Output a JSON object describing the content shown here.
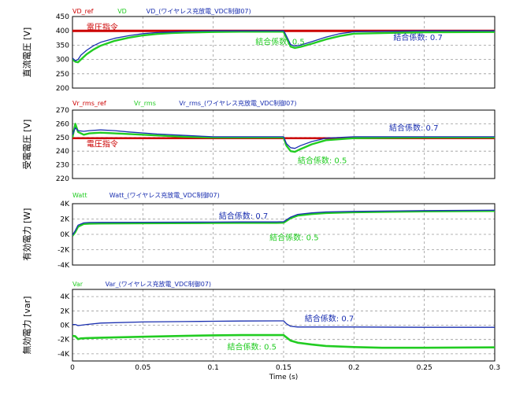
{
  "chart_data": [
    {
      "type": "line",
      "ylabel": "直流電圧 [V]",
      "ylim": [
        200,
        450
      ],
      "yticks": [
        "200",
        "250",
        "300",
        "350",
        "400",
        "450"
      ],
      "grid": true,
      "legend": [
        {
          "label": "VD_ref",
          "color": "#cc0000"
        },
        {
          "label": "VD",
          "color": "#22cc22"
        },
        {
          "label": "VD_(ワイヤレス充放電_VDC制御07)",
          "color": "#1a2fb0"
        }
      ],
      "series": [
        {
          "name": "VD_ref",
          "color": "#cc0000",
          "width": 3,
          "x": [
            0,
            0.3
          ],
          "y": [
            400,
            400
          ]
        },
        {
          "name": "VD",
          "color": "#22cc22",
          "width": 2.4,
          "x": [
            0,
            0.002,
            0.004,
            0.006,
            0.01,
            0.015,
            0.02,
            0.03,
            0.04,
            0.05,
            0.06,
            0.07,
            0.08,
            0.1,
            0.12,
            0.145,
            0.15,
            0.151,
            0.153,
            0.155,
            0.158,
            0.162,
            0.17,
            0.18,
            0.19,
            0.2,
            0.25,
            0.3
          ],
          "y": [
            300,
            292,
            290,
            300,
            318,
            335,
            348,
            365,
            376,
            384,
            389,
            392,
            394,
            396,
            397,
            397,
            397,
            385,
            365,
            345,
            340,
            344,
            355,
            370,
            382,
            390,
            395,
            396
          ]
        },
        {
          "name": "VD_(ワイヤレス充放電_VDC制御07)",
          "color": "#1a2fb0",
          "width": 1.3,
          "x": [
            0,
            0.002,
            0.004,
            0.006,
            0.01,
            0.015,
            0.02,
            0.03,
            0.04,
            0.05,
            0.06,
            0.07,
            0.08,
            0.1,
            0.12,
            0.145,
            0.15,
            0.151,
            0.153,
            0.155,
            0.158,
            0.162,
            0.17,
            0.18,
            0.19,
            0.2,
            0.25,
            0.3
          ],
          "y": [
            305,
            296,
            300,
            315,
            332,
            348,
            360,
            374,
            383,
            390,
            394,
            396,
            398,
            400,
            400,
            400,
            400,
            392,
            372,
            352,
            347,
            350,
            362,
            378,
            390,
            397,
            400,
            400
          ]
        }
      ],
      "annotations": [
        {
          "text": "電圧指令",
          "color": "#cc0000",
          "x": 0.01,
          "y": 414
        },
        {
          "text": "結合係数: 0.5",
          "color": "#22cc22",
          "x": 0.13,
          "y": 363
        },
        {
          "text": "結合係数: 0.7",
          "color": "#1a2fb0",
          "x": 0.228,
          "y": 379
        }
      ]
    },
    {
      "type": "line",
      "ylabel": "受電電圧 [V]",
      "ylim": [
        220,
        270
      ],
      "yticks": [
        "220",
        "230",
        "240",
        "250",
        "260",
        "270"
      ],
      "grid": true,
      "legend": [
        {
          "label": "Vr_rms_ref",
          "color": "#cc0000"
        },
        {
          "label": "Vr_rms",
          "color": "#22cc22"
        },
        {
          "label": "Vr_rms_(ワイヤレス充放電_VDC制御07)",
          "color": "#1a2fb0"
        }
      ],
      "series": [
        {
          "name": "Vr_rms_ref",
          "color": "#cc0000",
          "width": 2.5,
          "x": [
            0,
            0.3
          ],
          "y": [
            249.5,
            249.5
          ]
        },
        {
          "name": "Vr_rms",
          "color": "#22cc22",
          "width": 2.4,
          "x": [
            0,
            0.002,
            0.004,
            0.008,
            0.012,
            0.02,
            0.03,
            0.04,
            0.06,
            0.08,
            0.1,
            0.12,
            0.145,
            0.15,
            0.152,
            0.155,
            0.158,
            0.162,
            0.17,
            0.18,
            0.2,
            0.25,
            0.3
          ],
          "y": [
            250,
            260,
            254,
            252,
            253,
            253.5,
            253,
            252.5,
            251.5,
            250.5,
            250,
            250,
            250,
            250,
            244,
            240,
            239.5,
            241.5,
            245,
            248,
            249.5,
            250,
            250
          ]
        },
        {
          "name": "Vr_rms_(ワイヤレス充放電_VDC制御07)",
          "color": "#1a2fb0",
          "width": 1.3,
          "x": [
            0,
            0.002,
            0.004,
            0.008,
            0.012,
            0.02,
            0.03,
            0.04,
            0.06,
            0.08,
            0.1,
            0.12,
            0.145,
            0.15,
            0.152,
            0.155,
            0.158,
            0.162,
            0.17,
            0.18,
            0.2,
            0.25,
            0.3
          ],
          "y": [
            252,
            257,
            255,
            254.5,
            255,
            255.5,
            255,
            254,
            252.5,
            251.5,
            250.5,
            250.5,
            250.5,
            250.5,
            245.5,
            242.5,
            242,
            244,
            247,
            249.5,
            250.5,
            250.5,
            250.5
          ]
        }
      ],
      "annotations": [
        {
          "text": "電圧指令",
          "color": "#cc0000",
          "x": 0.01,
          "y": 245.5
        },
        {
          "text": "結合係数: 0.5",
          "color": "#22cc22",
          "x": 0.16,
          "y": 233.5
        },
        {
          "text": "結合係数: 0.7",
          "color": "#1a2fb0",
          "x": 0.225,
          "y": 257.5
        }
      ]
    },
    {
      "type": "line",
      "ylabel": "有効電力 [W]",
      "ylim": [
        -4000,
        4000
      ],
      "yticks": [
        "-4K",
        "-2K",
        "0K",
        "2K",
        "4K"
      ],
      "grid": true,
      "legend": [
        {
          "label": "Watt",
          "color": "#22cc22"
        },
        {
          "label": "Watt_(ワイヤレス充放電_VDC制御07)",
          "color": "#1a2fb0"
        }
      ],
      "series": [
        {
          "name": "Watt",
          "color": "#22cc22",
          "width": 2.4,
          "x": [
            0,
            0.002,
            0.004,
            0.008,
            0.012,
            0.02,
            0.05,
            0.1,
            0.12,
            0.145,
            0.15,
            0.155,
            0.16,
            0.17,
            0.18,
            0.2,
            0.25,
            0.3
          ],
          "y": [
            -200,
            300,
            1000,
            1350,
            1400,
            1420,
            1450,
            1480,
            1500,
            1500,
            1520,
            2100,
            2450,
            2650,
            2780,
            2880,
            3000,
            3050
          ]
        },
        {
          "name": "Watt_(ワイヤレス充放電_VDC制御07)",
          "color": "#1a2fb0",
          "width": 1.3,
          "x": [
            0,
            0.002,
            0.004,
            0.008,
            0.012,
            0.02,
            0.05,
            0.1,
            0.12,
            0.145,
            0.15,
            0.155,
            0.16,
            0.17,
            0.18,
            0.2,
            0.25,
            0.3
          ],
          "y": [
            -100,
            500,
            1200,
            1500,
            1550,
            1560,
            1580,
            1600,
            1620,
            1620,
            1650,
            2250,
            2600,
            2800,
            2920,
            3000,
            3100,
            3150
          ]
        }
      ],
      "annotations": [
        {
          "text": "結合係数: 0.7",
          "color": "#1a2fb0",
          "x": 0.104,
          "y": 2450
        },
        {
          "text": "結合係数: 0.5",
          "color": "#22cc22",
          "x": 0.14,
          "y": -350
        }
      ]
    },
    {
      "type": "line",
      "ylabel": "無効電力 [var]",
      "ylim": [
        -5000,
        5000
      ],
      "yticks": [
        "-4K",
        "-2K",
        "0K",
        "2K",
        "4K"
      ],
      "grid": true,
      "legend": [
        {
          "label": "Var",
          "color": "#22cc22"
        },
        {
          "label": "Var_(ワイヤレス充放電_VDC制御07)",
          "color": "#1a2fb0"
        }
      ],
      "series": [
        {
          "name": "Var",
          "color": "#22cc22",
          "width": 2.6,
          "x": [
            0,
            0.002,
            0.004,
            0.006,
            0.01,
            0.02,
            0.05,
            0.08,
            0.1,
            0.12,
            0.145,
            0.15,
            0.152,
            0.155,
            0.16,
            0.17,
            0.18,
            0.2,
            0.22,
            0.25,
            0.3
          ],
          "y": [
            -1500,
            -1550,
            -1950,
            -1850,
            -1800,
            -1750,
            -1620,
            -1500,
            -1420,
            -1380,
            -1380,
            -1380,
            -1700,
            -2150,
            -2450,
            -2700,
            -2900,
            -3050,
            -3150,
            -3150,
            -3100
          ]
        },
        {
          "name": "Var_(ワイヤレス充放電_VDC制御07)",
          "color": "#1a2fb0",
          "width": 1.3,
          "x": [
            0,
            0.002,
            0.004,
            0.01,
            0.02,
            0.05,
            0.08,
            0.1,
            0.12,
            0.145,
            0.15,
            0.152,
            0.155,
            0.16,
            0.17,
            0.2,
            0.25,
            0.3
          ],
          "y": [
            100,
            100,
            -50,
            100,
            300,
            450,
            500,
            550,
            580,
            600,
            600,
            200,
            -150,
            -250,
            -250,
            -250,
            -300,
            -300
          ]
        }
      ],
      "annotations": [
        {
          "text": "結合係数: 0.7",
          "color": "#1a2fb0",
          "x": 0.165,
          "y": 1000
        },
        {
          "text": "結合係数: 0.5",
          "color": "#22cc22",
          "x": 0.11,
          "y": -2950
        }
      ]
    }
  ],
  "x_axis": {
    "label": "Time (s)",
    "xlim": [
      0,
      0.3
    ],
    "ticks": [
      "0",
      "0.05",
      "0.1",
      "0.15",
      "0.2",
      "0.25",
      "0.3"
    ]
  }
}
